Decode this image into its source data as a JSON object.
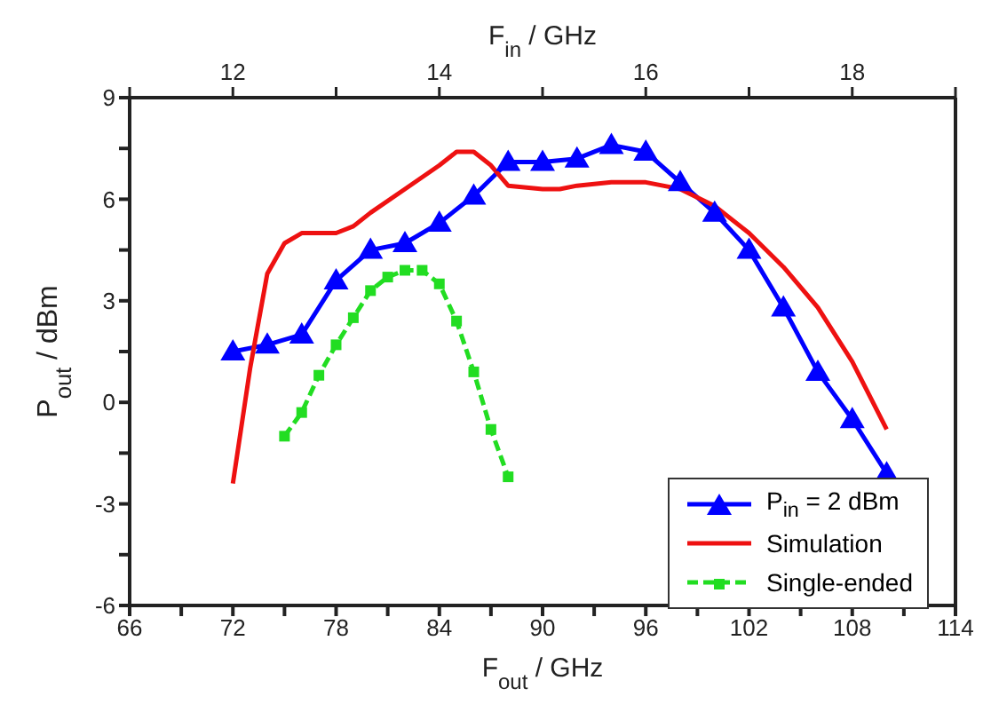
{
  "chart_data": {
    "type": "line",
    "xlabel": "F$_{out}$ / GHz",
    "x2label": "F$_{in}$ / GHz",
    "ylabel": "P$_{out}$ / dBm",
    "xlim": [
      66,
      114
    ],
    "xticks": [
      66,
      {
        "value": 69,
        "label": null
      },
      72,
      {
        "value": 75,
        "label": null
      },
      78,
      {
        "value": 81,
        "label": null
      },
      84,
      {
        "value": 87,
        "label": null
      },
      90,
      {
        "value": 93,
        "label": null
      },
      96,
      {
        "value": 99,
        "label": null
      },
      102,
      {
        "value": 105,
        "label": null
      },
      108,
      {
        "value": 111,
        "label": null
      },
      114
    ],
    "x2lim": [
      11,
      19
    ],
    "x2ticks": [
      {
        "value": 11,
        "label": null
      },
      12,
      {
        "value": 13,
        "label": null
      },
      14,
      {
        "value": 15,
        "label": null
      },
      16,
      {
        "value": 17,
        "label": null
      },
      18,
      {
        "value": 19,
        "label": null
      }
    ],
    "ylim": [
      -6,
      9
    ],
    "yticks": [
      -6,
      {
        "value": -4.5,
        "label": null
      },
      -3,
      {
        "value": -1.5,
        "label": null
      },
      0,
      {
        "value": 1.5,
        "label": null
      },
      3,
      {
        "value": 4.5,
        "label": null
      },
      6,
      {
        "value": 7.5,
        "label": null
      },
      9
    ],
    "grid": false,
    "legend": "bottom right",
    "series": [
      {
        "name": "P$_{in}$ = 2 dBm",
        "color": "#0000ff",
        "marker": "triangle",
        "line_style": "solid",
        "x": [
          72,
          74,
          76,
          78,
          80,
          82,
          84,
          86,
          88,
          90,
          92,
          94,
          96,
          98,
          100,
          102,
          104,
          106,
          108,
          110
        ],
        "values": [
          1.5,
          1.7,
          2.0,
          3.6,
          4.5,
          4.7,
          5.3,
          6.1,
          7.1,
          7.1,
          7.2,
          7.6,
          7.4,
          6.5,
          5.6,
          4.5,
          2.8,
          0.9,
          -0.5,
          -2.1
        ]
      },
      {
        "name": "Simulation",
        "color": "#ee1111",
        "marker": "none",
        "line_style": "solid",
        "x": [
          72,
          73,
          74,
          75,
          76,
          78,
          79,
          80,
          82,
          84,
          85,
          86,
          87,
          88,
          90,
          91,
          92,
          94,
          96,
          98,
          100,
          102,
          104,
          106,
          108,
          110
        ],
        "values": [
          -2.4,
          1.0,
          3.8,
          4.7,
          5.0,
          5.0,
          5.2,
          5.6,
          6.3,
          7.0,
          7.4,
          7.4,
          7.0,
          6.4,
          6.3,
          6.3,
          6.4,
          6.5,
          6.5,
          6.3,
          5.8,
          5.0,
          4.0,
          2.8,
          1.2,
          -0.8
        ]
      },
      {
        "name": "Single-ended",
        "color": "#22dd22",
        "marker": "square",
        "line_style": "dashed",
        "x": [
          75,
          76,
          77,
          78,
          79,
          80,
          81,
          82,
          83,
          84,
          85,
          86,
          87,
          88
        ],
        "values": [
          -1.0,
          -0.3,
          0.8,
          1.7,
          2.5,
          3.3,
          3.7,
          3.9,
          3.9,
          3.5,
          2.4,
          0.9,
          -0.8,
          -2.2
        ]
      }
    ]
  }
}
